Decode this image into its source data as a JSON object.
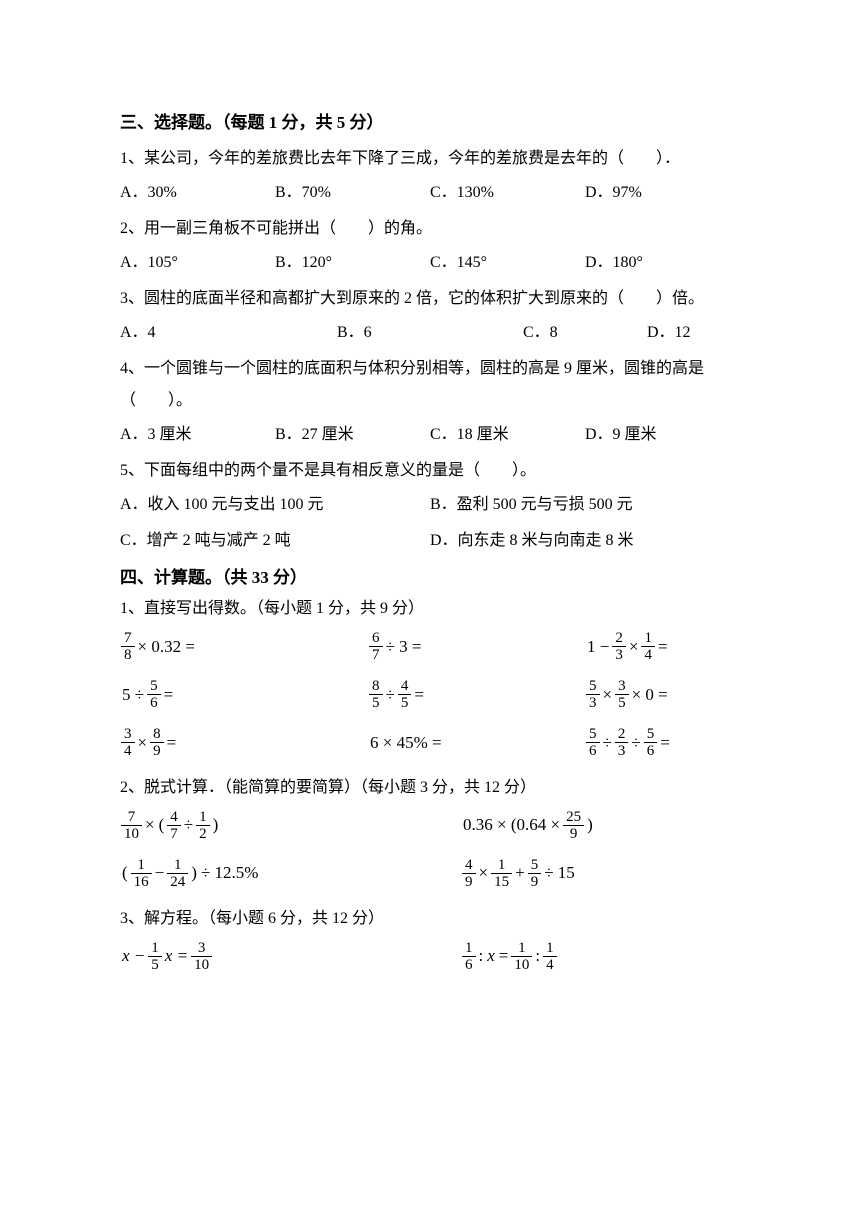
{
  "section3": {
    "title": "三、选择题。（每题 1 分，共 5 分）",
    "q1": {
      "text": "1、某公司，今年的差旅费比去年下降了三成，今年的差旅费是去年的（　　）．",
      "a": "A．30%",
      "b": "B．70%",
      "c": "C．130%",
      "d": "D．97%"
    },
    "q2": {
      "text": "2、用一副三角板不可能拼出（　　）的角。",
      "a": "A．105°",
      "b": "B．120°",
      "c": "C．145°",
      "d": "D．180°"
    },
    "q3": {
      "text": "3、圆柱的底面半径和高都扩大到原来的 2 倍，它的体积扩大到原来的（　　）倍。",
      "a": "A．4",
      "b": "B．6",
      "c": "C．8",
      "d": "D．12"
    },
    "q4": {
      "text": "4、一个圆锥与一个圆柱的底面积与体积分别相等，圆柱的高是 9 厘米，圆锥的高是（　　）。",
      "a": "A．3 厘米",
      "b": "B．27 厘米",
      "c": "C．18 厘米",
      "d": "D．9 厘米"
    },
    "q5": {
      "text": "5、下面每组中的两个量不是具有相反意义的量是（　　）。",
      "a": "A．收入 100 元与支出 100 元",
      "b": "B．盈利 500 元与亏损 500 元",
      "c": "C．增产 2 吨与减产 2 吨",
      "d": "D．向东走 8 米与向南走 8 米"
    }
  },
  "section4": {
    "title": "四、计算题。（共 33 分）",
    "sub1": "1、直接写出得数。（每小题 1 分，共 9 分）",
    "sub2": "2、脱式计算．（能简算的要简算）（每小题 3 分，共 12 分）",
    "sub3": "3、解方程。（每小题 6 分，共 12 分）",
    "calc1": {
      "r1c2_tail": " ÷ 3 =",
      "r1c3_pre": "1 − ",
      "r2c1_pre": "5 ÷ ",
      "r2c3_tail": " × 0 =",
      "r3c2": "6 × 45% ="
    },
    "fractions": {
      "f7_8": {
        "n": "7",
        "d": "8"
      },
      "f6_7": {
        "n": "6",
        "d": "7"
      },
      "f2_3": {
        "n": "2",
        "d": "3"
      },
      "f1_4": {
        "n": "1",
        "d": "4"
      },
      "f5_6": {
        "n": "5",
        "d": "6"
      },
      "f8_5": {
        "n": "8",
        "d": "5"
      },
      "f4_5": {
        "n": "4",
        "d": "5"
      },
      "f5_3": {
        "n": "5",
        "d": "3"
      },
      "f3_5": {
        "n": "3",
        "d": "5"
      },
      "f3_4": {
        "n": "3",
        "d": "4"
      },
      "f8_9": {
        "n": "8",
        "d": "9"
      },
      "f7_10": {
        "n": "7",
        "d": "10"
      },
      "f4_7": {
        "n": "4",
        "d": "7"
      },
      "f1_2": {
        "n": "1",
        "d": "2"
      },
      "f25_9": {
        "n": "25",
        "d": "9"
      },
      "f1_16": {
        "n": "1",
        "d": "16"
      },
      "f1_24": {
        "n": "1",
        "d": "24"
      },
      "f4_9": {
        "n": "4",
        "d": "9"
      },
      "f1_15": {
        "n": "1",
        "d": "15"
      },
      "f5_9": {
        "n": "5",
        "d": "9"
      },
      "f1_5": {
        "n": "1",
        "d": "5"
      },
      "f3_10": {
        "n": "3",
        "d": "10"
      },
      "f1_6": {
        "n": "1",
        "d": "6"
      },
      "f1_10": {
        "n": "1",
        "d": "10"
      }
    },
    "ops": {
      "times": "×",
      "div": "÷",
      "eq": " =",
      "minus": "−",
      "plus": "+",
      "lp": "(",
      "rp": ")",
      "colon": ":",
      "pct125": " ÷ 12.5%",
      "p032": " × 0.32 =",
      "p036": "0.36 × (0.64 × ",
      "div15": " ÷ 15",
      "x": "x",
      "xminus": "x − ",
      "xeq": " x = "
    }
  }
}
